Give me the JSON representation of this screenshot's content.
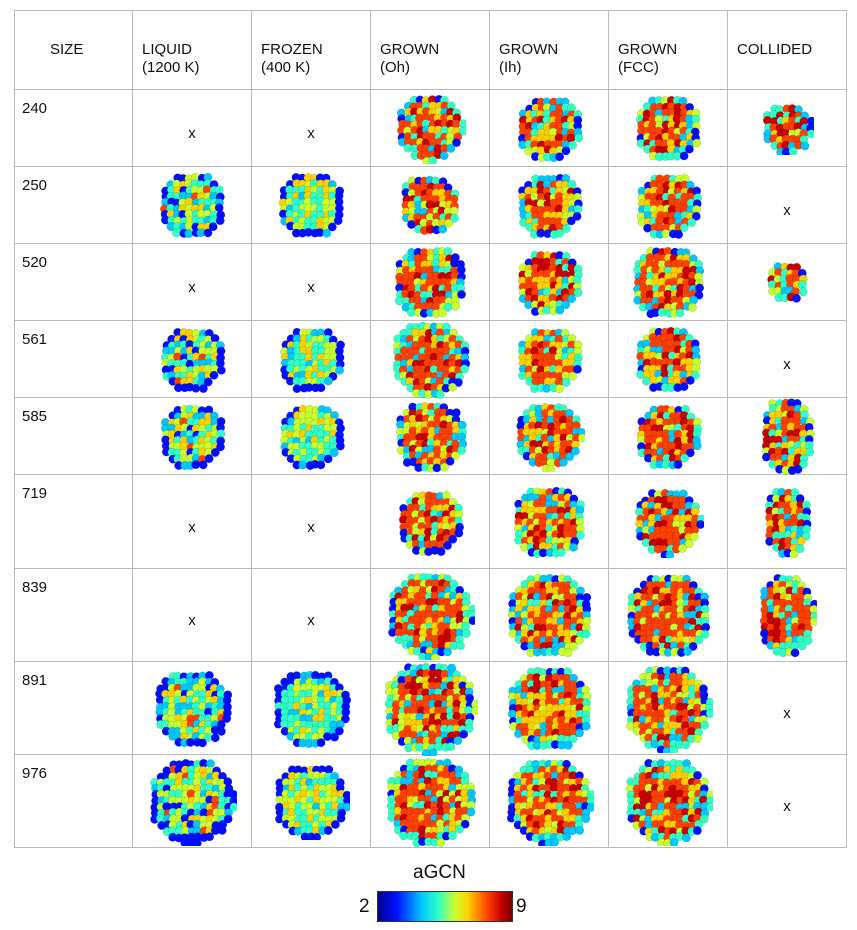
{
  "headers": [
    "SIZE",
    "LIQUID\n(1200 K)",
    "FROZEN\n(400 K)",
    "GROWN\n(Oh)",
    "GROWN\n(Ih)",
    "GROWN\n(FCC)",
    "COLLIDED"
  ],
  "absent_mark": "x",
  "rows": [
    {
      "size": "240",
      "cells": [
        "x",
        "x",
        "np",
        "np",
        "np",
        "np"
      ]
    },
    {
      "size": "250",
      "cells": [
        "np",
        "np",
        "np",
        "np",
        "np",
        "x"
      ]
    },
    {
      "size": "520",
      "cells": [
        "x",
        "x",
        "np",
        "np",
        "np",
        "np"
      ]
    },
    {
      "size": "561",
      "cells": [
        "np",
        "np",
        "np",
        "np",
        "np",
        "x"
      ]
    },
    {
      "size": "585",
      "cells": [
        "np",
        "np",
        "np",
        "np",
        "np",
        "np"
      ]
    },
    {
      "size": "719",
      "cells": [
        "x",
        "x",
        "np",
        "np",
        "np",
        "np"
      ]
    },
    {
      "size": "839",
      "cells": [
        "x",
        "x",
        "np",
        "np",
        "np",
        "np"
      ]
    },
    {
      "size": "891",
      "cells": [
        "np",
        "np",
        "np",
        "np",
        "np",
        "x"
      ]
    },
    {
      "size": "976",
      "cells": [
        "np",
        "np",
        "np",
        "np",
        "np",
        "x"
      ]
    }
  ],
  "legend": {
    "title": "aGCN",
    "min": "2",
    "max": "9"
  },
  "colormap": [
    "#00008c",
    "#0010ff",
    "#00c8ff",
    "#30ffc8",
    "#c8ff30",
    "#ffd000",
    "#ff4000",
    "#c80000",
    "#7a0000"
  ]
}
